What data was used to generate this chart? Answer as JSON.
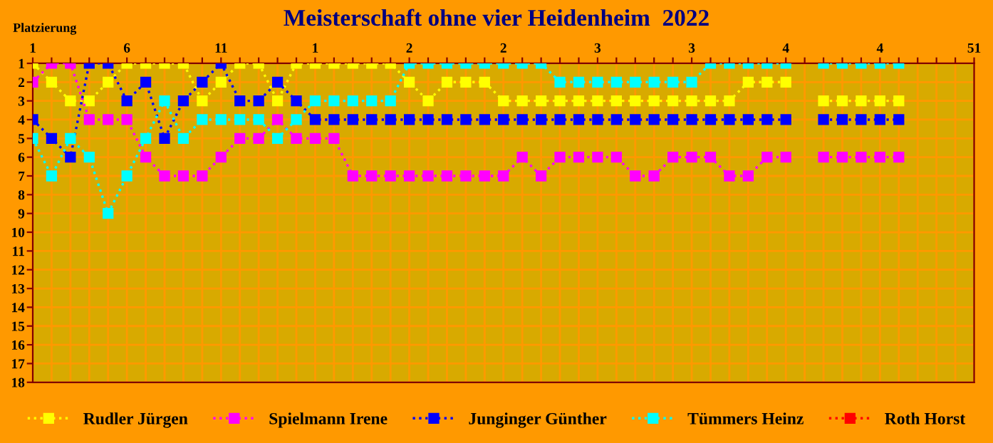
{
  "chart_data": {
    "type": "line",
    "title": "Meisterschaft ohne vier Heidenheim  2022",
    "ylabel": "Platzierung",
    "categories": [
      "1",
      null,
      null,
      null,
      null,
      "6",
      null,
      null,
      null,
      null,
      "11",
      null,
      null,
      null,
      null,
      "1",
      null,
      null,
      null,
      null,
      "2",
      null,
      null,
      null,
      null,
      "2",
      null,
      null,
      null,
      null,
      "3",
      null,
      null,
      null,
      null,
      "3",
      null,
      null,
      null,
      null,
      "4",
      null,
      null,
      null,
      null,
      "4",
      null,
      null,
      null,
      null,
      "51"
    ],
    "series": [
      {
        "name": "Rudler Jürgen",
        "color": "#ffff00",
        "values": [
          1,
          2,
          3,
          3,
          2,
          1,
          1,
          1,
          1,
          3,
          2,
          1,
          1,
          3,
          1,
          1,
          1,
          1,
          1,
          1,
          2,
          3,
          2,
          2,
          2,
          3,
          3,
          3,
          3,
          3,
          3,
          3,
          3,
          3,
          3,
          3,
          3,
          3,
          2,
          2,
          2,
          null,
          3,
          3,
          3,
          3,
          3,
          null,
          null,
          null,
          null
        ]
      },
      {
        "name": "Spielmann Irene",
        "color": "#ff00ff",
        "values": [
          2,
          1,
          1,
          4,
          4,
          4,
          6,
          7,
          7,
          7,
          6,
          5,
          5,
          4,
          5,
          5,
          5,
          7,
          7,
          7,
          7,
          7,
          7,
          7,
          7,
          7,
          6,
          7,
          6,
          6,
          6,
          6,
          7,
          7,
          6,
          6,
          6,
          7,
          7,
          6,
          6,
          null,
          6,
          6,
          6,
          6,
          6,
          null,
          null,
          null,
          null
        ]
      },
      {
        "name": "Junginger Günther",
        "color": "#0000ff",
        "values": [
          4,
          5,
          6,
          1,
          1,
          3,
          2,
          5,
          3,
          2,
          1,
          3,
          3,
          2,
          3,
          4,
          4,
          4,
          4,
          4,
          4,
          4,
          4,
          4,
          4,
          4,
          4,
          4,
          4,
          4,
          4,
          4,
          4,
          4,
          4,
          4,
          4,
          4,
          4,
          4,
          4,
          null,
          4,
          4,
          4,
          4,
          4,
          null,
          null,
          null,
          null
        ]
      },
      {
        "name": "Tümmers Heinz",
        "color": "#00ffff",
        "values": [
          5,
          7,
          5,
          6,
          9,
          7,
          5,
          3,
          5,
          4,
          4,
          4,
          4,
          5,
          4,
          3,
          3,
          3,
          3,
          3,
          1,
          1,
          1,
          1,
          1,
          1,
          1,
          1,
          2,
          2,
          2,
          2,
          2,
          2,
          2,
          2,
          1,
          1,
          1,
          1,
          1,
          null,
          1,
          1,
          1,
          1,
          1,
          null,
          null,
          null,
          null
        ]
      },
      {
        "name": "Roth Horst",
        "color": "#ff0000",
        "values": [
          null,
          null,
          null,
          null,
          null,
          null,
          null,
          null,
          null,
          null,
          null,
          null,
          null,
          null,
          null,
          null,
          null,
          null,
          null,
          null,
          null,
          null,
          null,
          null,
          null,
          null,
          null,
          null,
          null,
          null,
          null,
          null,
          null,
          null,
          null,
          null,
          null,
          null,
          null,
          null,
          null,
          null,
          null,
          null,
          null,
          null,
          null,
          null,
          null,
          null,
          null
        ]
      }
    ],
    "ylim": [
      18,
      1
    ],
    "yticks": [
      1,
      2,
      3,
      4,
      5,
      6,
      7,
      8,
      9,
      10,
      11,
      12,
      13,
      14,
      15,
      16,
      17,
      18
    ],
    "grid": true,
    "legend": "bottom",
    "marker": "square",
    "line_style": "dotted"
  }
}
